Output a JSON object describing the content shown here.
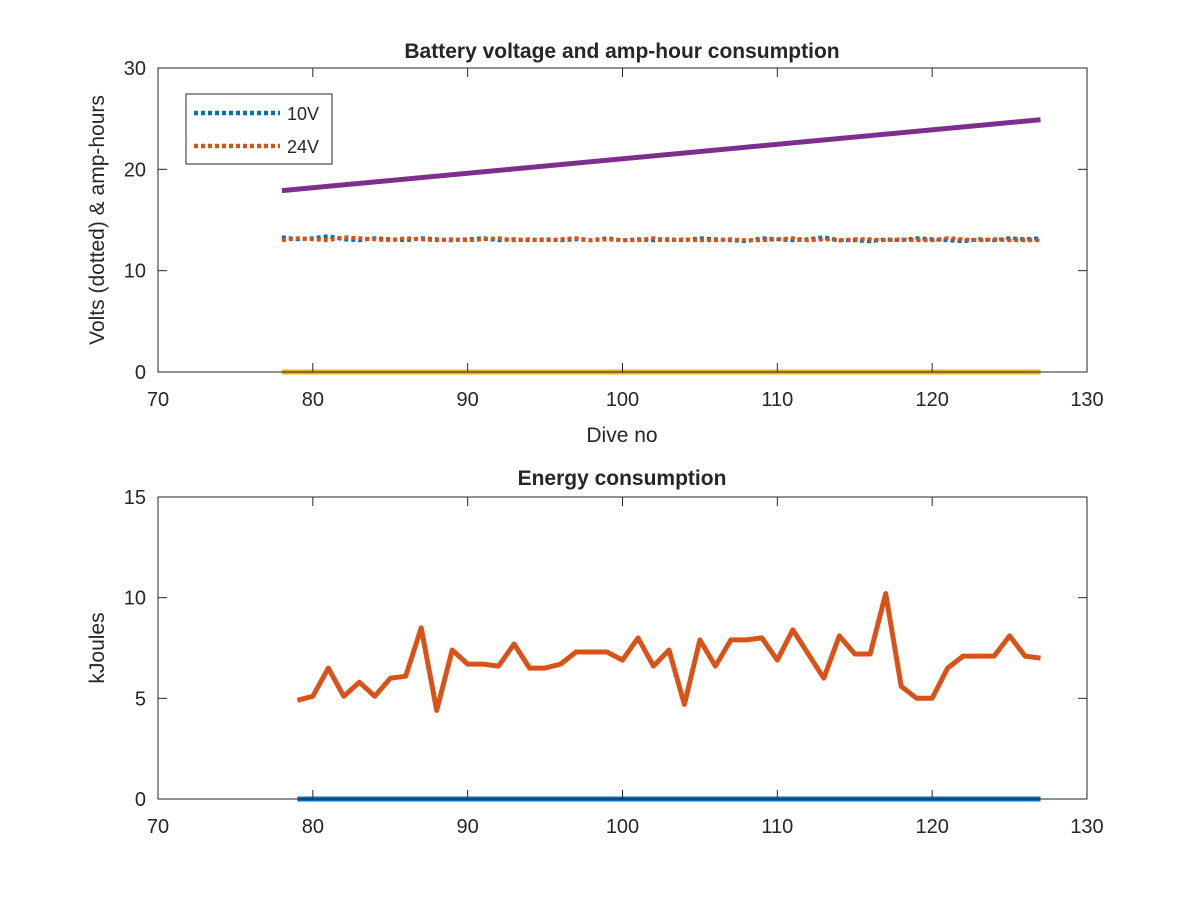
{
  "chart_data": [
    {
      "type": "line",
      "title": "Battery voltage and amp-hour consumption",
      "xlabel": "Dive no",
      "ylabel": "Volts (dotted) & amp-hours",
      "xlim": [
        70,
        130
      ],
      "ylim": [
        0,
        30
      ],
      "xticks": [
        "70",
        "80",
        "90",
        "100",
        "110",
        "120",
        "130"
      ],
      "yticks": [
        "0",
        "10",
        "20",
        "30"
      ],
      "grid": false,
      "legend_position": "top-left",
      "series": [
        {
          "name": "10V",
          "color": "#0072bd",
          "style": "dotted",
          "x": [
            78,
            79,
            80,
            81,
            82,
            83,
            84,
            85,
            86,
            87,
            88,
            89,
            90,
            91,
            92,
            93,
            94,
            95,
            96,
            97,
            98,
            99,
            100,
            101,
            102,
            103,
            104,
            105,
            106,
            107,
            108,
            109,
            110,
            111,
            112,
            113,
            114,
            115,
            116,
            117,
            118,
            119,
            120,
            121,
            122,
            123,
            124,
            125,
            126,
            127
          ],
          "y": [
            13.3,
            13.1,
            13.2,
            13.4,
            13.1,
            13.0,
            13.2,
            13.1,
            13.0,
            13.2,
            13.1,
            13.0,
            13.1,
            13.2,
            13.0,
            13.1,
            13.0,
            13.1,
            13.0,
            13.1,
            13.0,
            13.2,
            13.0,
            13.1,
            13.0,
            13.1,
            13.0,
            13.2,
            13.1,
            13.0,
            12.9,
            13.2,
            13.1,
            13.0,
            13.1,
            13.3,
            13.0,
            13.0,
            12.9,
            13.1,
            13.0,
            13.2,
            13.1,
            13.0,
            12.9,
            13.1,
            13.0,
            13.2,
            13.1,
            13.2
          ]
        },
        {
          "name": "24V",
          "color": "#d95319",
          "style": "dotted",
          "x": [
            78,
            79,
            80,
            81,
            82,
            83,
            84,
            85,
            86,
            87,
            88,
            89,
            90,
            91,
            92,
            93,
            94,
            95,
            96,
            97,
            98,
            99,
            100,
            101,
            102,
            103,
            104,
            105,
            106,
            107,
            108,
            109,
            110,
            111,
            112,
            113,
            114,
            115,
            116,
            117,
            118,
            119,
            120,
            121,
            122,
            123,
            124,
            125,
            126,
            127
          ],
          "y": [
            13.0,
            13.2,
            13.1,
            13.0,
            13.3,
            13.2,
            13.1,
            13.0,
            13.2,
            13.1,
            13.0,
            13.1,
            13.0,
            13.1,
            13.2,
            13.0,
            13.1,
            13.0,
            13.1,
            13.2,
            13.0,
            13.1,
            13.0,
            13.0,
            13.2,
            13.0,
            13.1,
            13.0,
            13.0,
            13.1,
            13.0,
            13.0,
            13.1,
            13.2,
            13.0,
            13.1,
            13.0,
            13.1,
            13.1,
            13.0,
            13.1,
            13.0,
            13.0,
            13.2,
            13.1,
            13.0,
            13.1,
            13.0,
            13.0,
            13.0
          ]
        },
        {
          "color": "#7e2f8e",
          "style": "solid",
          "x": [
            78,
            127
          ],
          "y": [
            17.9,
            24.9
          ]
        },
        {
          "color": "#edb120",
          "style": "solid",
          "x": [
            78,
            127
          ],
          "y": [
            0,
            0
          ]
        }
      ]
    },
    {
      "type": "line",
      "title": "Energy consumption",
      "xlabel": "",
      "ylabel": "kJoules",
      "xlim": [
        70,
        130
      ],
      "ylim": [
        0,
        15
      ],
      "xticks": [
        "70",
        "80",
        "90",
        "100",
        "110",
        "120",
        "130"
      ],
      "yticks": [
        "0",
        "5",
        "10",
        "15"
      ],
      "grid": false,
      "series": [
        {
          "color": "#d95319",
          "style": "solid",
          "x": [
            79,
            80,
            81,
            82,
            83,
            84,
            85,
            86,
            87,
            88,
            89,
            90,
            91,
            92,
            93,
            94,
            95,
            96,
            97,
            98,
            99,
            100,
            101,
            102,
            103,
            104,
            105,
            106,
            107,
            108,
            109,
            110,
            111,
            112,
            113,
            114,
            115,
            116,
            117,
            118,
            119,
            120,
            121,
            122,
            123,
            124,
            125,
            126,
            127
          ],
          "y": [
            4.9,
            5.1,
            6.5,
            5.1,
            5.8,
            5.1,
            6.0,
            6.1,
            8.5,
            4.4,
            7.4,
            6.7,
            6.7,
            6.6,
            7.7,
            6.5,
            6.5,
            6.7,
            7.3,
            7.3,
            7.3,
            6.9,
            8.0,
            6.6,
            7.4,
            4.7,
            7.9,
            6.6,
            7.9,
            7.9,
            8.0,
            6.9,
            8.4,
            7.2,
            6.0,
            8.1,
            7.2,
            7.2,
            10.2,
            5.6,
            5.0,
            5.0,
            6.5,
            7.1,
            7.1,
            7.1,
            8.1,
            7.1,
            7.0
          ]
        },
        {
          "color": "#0072bd",
          "style": "solid",
          "x": [
            79,
            127
          ],
          "y": [
            0,
            0
          ]
        }
      ]
    }
  ]
}
